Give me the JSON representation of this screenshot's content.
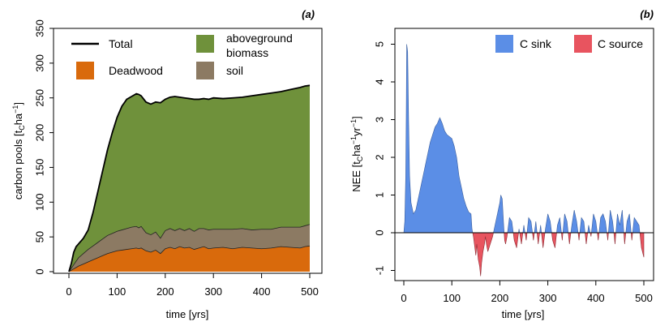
{
  "chart_data": [
    {
      "panel_label": "(a)",
      "type": "area",
      "title": "",
      "xlabel": "time [yrs]",
      "ylabel_main": "carbon pools [t",
      "ylabel_sub": "C",
      "ylabel_mid": "ha",
      "ylabel_sup": "−1",
      "ylabel_end": "]",
      "xlim": [
        0,
        500
      ],
      "ylim": [
        0,
        350
      ],
      "xticks": [
        "0",
        "100",
        "200",
        "300",
        "400",
        "500"
      ],
      "yticks": [
        "0",
        "50",
        "100",
        "150",
        "200",
        "250",
        "300",
        "350"
      ],
      "legend": {
        "position": "top",
        "total": "Total",
        "aboveground_1": "aboveground",
        "aboveground_2": "biomass",
        "deadwood": "Deadwood",
        "soil": "soil"
      },
      "colors": {
        "deadwood": "#d96a0c",
        "soil": "#8c7a63",
        "aboveground": "#6f913b",
        "total": "#000000"
      },
      "x": [
        0,
        5,
        10,
        15,
        20,
        30,
        40,
        50,
        60,
        70,
        80,
        90,
        100,
        110,
        120,
        130,
        140,
        145,
        150,
        160,
        170,
        180,
        190,
        200,
        210,
        220,
        230,
        240,
        250,
        260,
        270,
        280,
        290,
        300,
        320,
        340,
        360,
        380,
        400,
        420,
        440,
        460,
        480,
        490,
        500
      ],
      "series": [
        {
          "key": "deadwood",
          "name": "Deadwood",
          "values": [
            0,
            2,
            4,
            6,
            8,
            11,
            14,
            17,
            20,
            23,
            26,
            28,
            30,
            31,
            32,
            33,
            34,
            33,
            34,
            30,
            28,
            31,
            26,
            33,
            35,
            33,
            36,
            34,
            35,
            32,
            34,
            36,
            33,
            34,
            35,
            33,
            35,
            34,
            33,
            34,
            36,
            35,
            34,
            36,
            37
          ]
        },
        {
          "key": "soil",
          "name": "soil",
          "values": [
            0,
            3,
            6,
            9,
            12,
            15,
            18,
            20,
            22,
            24,
            26,
            27,
            28,
            29,
            30,
            31,
            31,
            30,
            31,
            26,
            25,
            26,
            22,
            26,
            27,
            26,
            26,
            25,
            27,
            26,
            28,
            26,
            27,
            27,
            26,
            28,
            27,
            26,
            28,
            27,
            28,
            29,
            30,
            30,
            31
          ]
        },
        {
          "key": "total",
          "name": "Total",
          "values": [
            0,
            12,
            28,
            36,
            40,
            48,
            60,
            85,
            115,
            145,
            175,
            200,
            222,
            238,
            248,
            252,
            256,
            255,
            253,
            244,
            241,
            244,
            243,
            248,
            251,
            252,
            251,
            250,
            249,
            248,
            248,
            249,
            248,
            250,
            249,
            250,
            251,
            253,
            255,
            257,
            259,
            262,
            265,
            267,
            268
          ]
        }
      ]
    },
    {
      "panel_label": "(b)",
      "type": "area",
      "title": "",
      "xlabel": "time [yrs]",
      "ylabel_main": "NEE [t",
      "ylabel_sub": "C",
      "ylabel_mid": "ha",
      "ylabel_sup": "−1",
      "ylabel_mid2": "yr",
      "ylabel_sup2": "−1",
      "ylabel_end": "]",
      "xlim": [
        0,
        500
      ],
      "ylim": [
        -1.2,
        5.2
      ],
      "xticks": [
        "0",
        "100",
        "200",
        "300",
        "400",
        "500"
      ],
      "yticks": [
        "-1",
        "0",
        "1",
        "2",
        "3",
        "4",
        "5"
      ],
      "legend": {
        "position": "top-right",
        "sink": "C sink",
        "source": "C source"
      },
      "colors": {
        "sink": "#5b8ee6",
        "source": "#e8545f"
      },
      "x": [
        0,
        2,
        4,
        5,
        6,
        8,
        10,
        12,
        15,
        20,
        25,
        30,
        35,
        40,
        45,
        50,
        55,
        60,
        65,
        70,
        75,
        80,
        85,
        90,
        95,
        100,
        105,
        110,
        115,
        120,
        125,
        130,
        135,
        140,
        142,
        145,
        148,
        150,
        152,
        155,
        158,
        160,
        162,
        165,
        168,
        170,
        172,
        175,
        180,
        185,
        190,
        195,
        200,
        202,
        205,
        208,
        210,
        212,
        215,
        220,
        225,
        230,
        235,
        240,
        245,
        250,
        255,
        260,
        265,
        270,
        275,
        280,
        285,
        290,
        295,
        300,
        305,
        310,
        315,
        320,
        325,
        330,
        335,
        340,
        345,
        350,
        355,
        360,
        365,
        370,
        375,
        380,
        385,
        390,
        395,
        400,
        405,
        410,
        415,
        420,
        425,
        430,
        435,
        440,
        445,
        450,
        455,
        460,
        465,
        470,
        475,
        480,
        485,
        490,
        495,
        500
      ],
      "values": [
        0,
        0.3,
        1.5,
        3.0,
        5.0,
        4.8,
        3.0,
        1.5,
        0.8,
        0.5,
        0.6,
        0.9,
        1.2,
        1.5,
        1.8,
        2.1,
        2.4,
        2.6,
        2.8,
        2.9,
        3.05,
        2.9,
        2.7,
        2.6,
        2.55,
        2.5,
        2.3,
        2.0,
        1.5,
        1.2,
        0.9,
        0.7,
        0.55,
        0.5,
        0.1,
        -0.1,
        -0.4,
        -0.6,
        -0.3,
        -0.7,
        -0.9,
        -1.15,
        -0.8,
        -0.5,
        -0.3,
        -0.1,
        -0.3,
        -0.5,
        -0.3,
        -0.1,
        0.2,
        0.5,
        0.8,
        1.0,
        0.9,
        0.2,
        -0.2,
        -0.3,
        -0.1,
        0.4,
        0.3,
        -0.2,
        -0.4,
        0.1,
        -0.3,
        0.2,
        -0.2,
        0.4,
        0.3,
        -0.2,
        0.3,
        -0.3,
        0.2,
        -0.4,
        0.1,
        0.5,
        0.3,
        -0.2,
        -0.4,
        0.2,
        0.4,
        -0.2,
        0.5,
        0.3,
        -0.3,
        0.2,
        0.6,
        0.3,
        -0.2,
        0.4,
        0.3,
        -0.3,
        0.2,
        -0.1,
        0.5,
        0.3,
        -0.2,
        0.4,
        0.5,
        0.3,
        -0.2,
        0.6,
        0.3,
        -0.3,
        0.5,
        0.2,
        0.6,
        -0.3,
        0.3,
        0.5,
        -0.2,
        0.4,
        0.3,
        0.2,
        -0.4,
        -0.65
      ]
    }
  ]
}
